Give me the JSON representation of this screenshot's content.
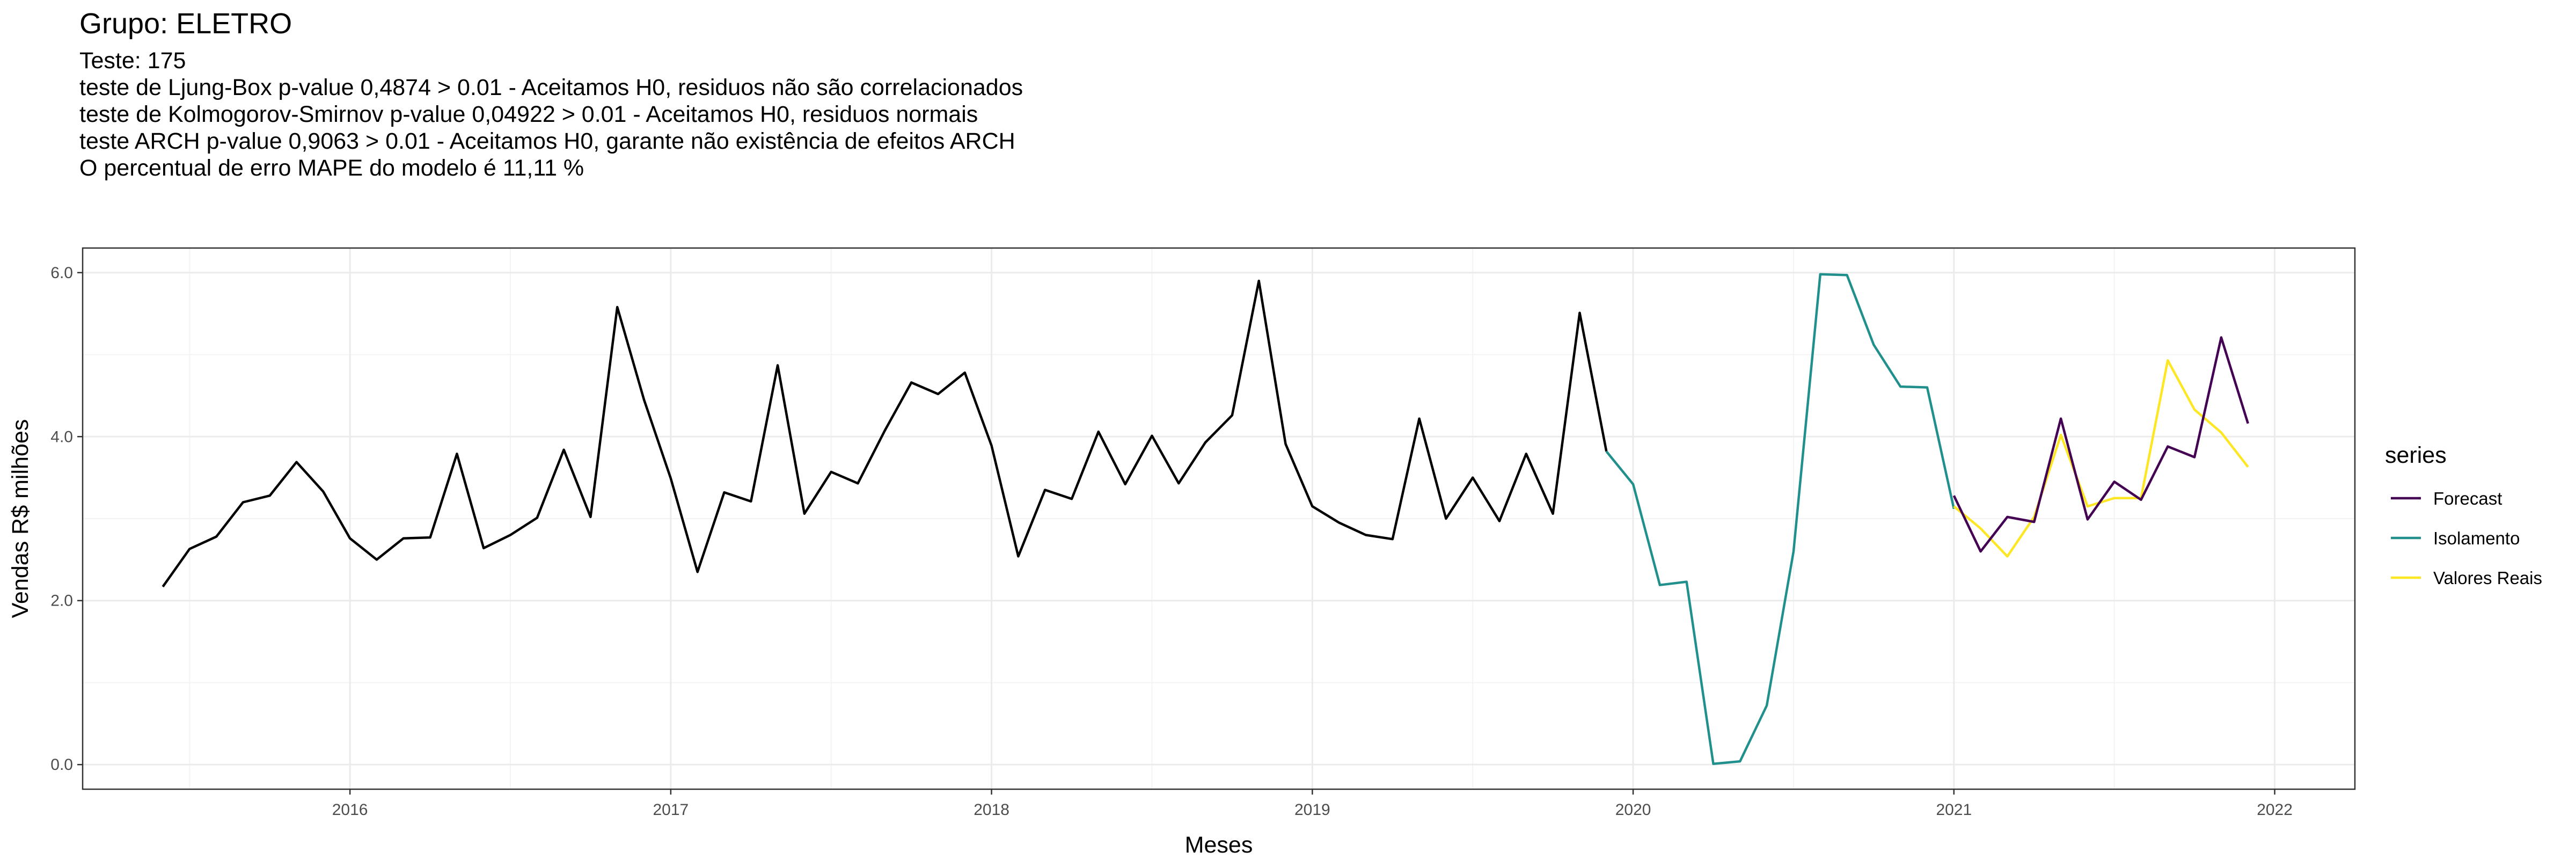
{
  "title": "Grupo: ELETRO",
  "subtitle_lines": [
    "Teste: 175",
    "teste de Ljung-Box p-value 0,4874 > 0.01 - Aceitamos H0, residuos não são correlacionados",
    "teste de Kolmogorov-Smirnov p-value 0,04922 > 0.01 - Aceitamos H0, residuos normais",
    "teste ARCH p-value 0,9063 > 0.01 - Aceitamos H0, garante não existência de efeitos ARCH",
    "O percentual de erro MAPE do modelo é 11,11 %"
  ],
  "chart_data": {
    "type": "line",
    "title": "Grupo: ELETRO",
    "xlabel": "Meses",
    "ylabel": "Vendas R$ milhões",
    "x_ticks": [
      "2016",
      "2017",
      "2018",
      "2019",
      "2020",
      "2021",
      "2022"
    ],
    "y_ticks": [
      "0.0",
      "2.0",
      "4.0",
      "6.0"
    ],
    "xlim": [
      "2015-03",
      "2022-04"
    ],
    "ylim": [
      -0.3,
      6.3
    ],
    "grid": true,
    "legend": {
      "title": "series",
      "position": "right"
    },
    "colors": {
      "history": "#000000",
      "Forecast": "#440154",
      "Isolamento": "#21908C",
      "Valores Reais": "#FDE725",
      "panel_border": "#333333",
      "grid_major": "#ebebeb",
      "grid_minor": "#f4f4f4"
    },
    "history": {
      "x": [
        "2015-06",
        "2015-07",
        "2015-08",
        "2015-09",
        "2015-10",
        "2015-11",
        "2015-12",
        "2016-01",
        "2016-02",
        "2016-03",
        "2016-04",
        "2016-05",
        "2016-06",
        "2016-07",
        "2016-08",
        "2016-09",
        "2016-10",
        "2016-11",
        "2016-12",
        "2017-01",
        "2017-02",
        "2017-03",
        "2017-04",
        "2017-05",
        "2017-06",
        "2017-07",
        "2017-08",
        "2017-09",
        "2017-10",
        "2017-11",
        "2017-12",
        "2018-01",
        "2018-02",
        "2018-03",
        "2018-04",
        "2018-05",
        "2018-06",
        "2018-07",
        "2018-08",
        "2018-09",
        "2018-10",
        "2018-11",
        "2018-12",
        "2019-01",
        "2019-02",
        "2019-03",
        "2019-04",
        "2019-05",
        "2019-06",
        "2019-07",
        "2019-08",
        "2019-09",
        "2019-10",
        "2019-11",
        "2019-12"
      ],
      "values": [
        2.17,
        2.63,
        2.78,
        3.2,
        3.28,
        3.69,
        3.33,
        2.76,
        2.5,
        2.76,
        2.77,
        3.79,
        2.64,
        2.8,
        3.01,
        3.84,
        3.02,
        5.58,
        4.45,
        3.49,
        2.35,
        3.32,
        3.21,
        4.87,
        3.06,
        3.57,
        3.43,
        4.07,
        4.66,
        4.52,
        4.78,
        3.89,
        2.54,
        3.35,
        3.24,
        4.06,
        3.42,
        4.01,
        3.43,
        3.93,
        4.26,
        5.9,
        3.91,
        3.15,
        2.95,
        2.8,
        2.75,
        4.22,
        3.0,
        3.5,
        2.97,
        3.79,
        3.06,
        5.51,
        3.82
      ]
    },
    "series": [
      {
        "name": "Isolamento",
        "x": [
          "2019-12",
          "2020-01",
          "2020-02",
          "2020-03",
          "2020-04",
          "2020-05",
          "2020-06",
          "2020-07",
          "2020-08",
          "2020-09",
          "2020-10",
          "2020-11",
          "2020-12",
          "2021-01"
        ],
        "values": [
          3.82,
          3.42,
          2.19,
          2.23,
          0.01,
          0.04,
          0.72,
          2.6,
          5.98,
          5.97,
          5.12,
          4.61,
          4.6,
          3.12
        ]
      },
      {
        "name": "Valores Reais",
        "x": [
          "2021-01",
          "2021-02",
          "2021-03",
          "2021-04",
          "2021-05",
          "2021-06",
          "2021-07",
          "2021-08",
          "2021-09",
          "2021-10",
          "2021-11",
          "2021-12"
        ],
        "values": [
          3.15,
          2.88,
          2.54,
          3.02,
          4.02,
          3.15,
          3.25,
          3.25,
          4.93,
          4.33,
          4.05,
          3.63
        ]
      },
      {
        "name": "Forecast",
        "x": [
          "2021-01",
          "2021-02",
          "2021-03",
          "2021-04",
          "2021-05",
          "2021-06",
          "2021-07",
          "2021-08",
          "2021-09",
          "2021-10",
          "2021-11",
          "2021-12"
        ],
        "values": [
          3.28,
          2.6,
          3.02,
          2.96,
          4.22,
          2.99,
          3.45,
          3.23,
          3.88,
          3.75,
          5.21,
          4.16
        ]
      }
    ],
    "legend_entries": [
      "Forecast",
      "Isolamento",
      "Valores Reais"
    ]
  }
}
